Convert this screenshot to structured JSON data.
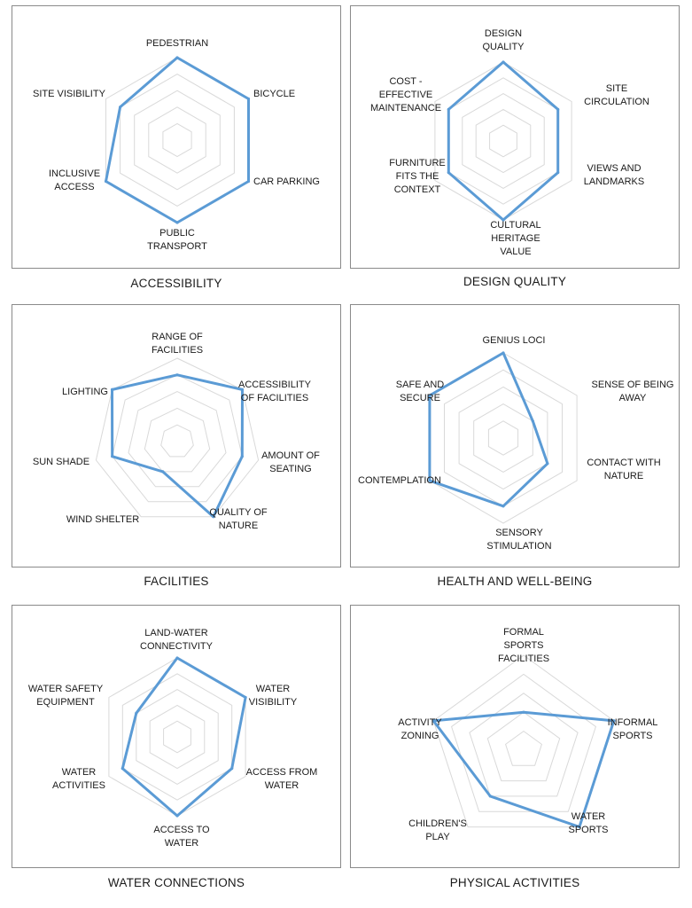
{
  "chart_data": [
    {
      "type": "radar",
      "title": "ACCESSIBILITY",
      "categories": [
        "PEDESTRIAN",
        "BICYCLE",
        "CAR PARKING",
        "PUBLIC TRANSPORT",
        "INCLUSIVE ACCESS",
        "SITE VISIBILITY"
      ],
      "values": [
        5,
        5,
        5,
        5,
        5,
        4
      ],
      "rmax": 5,
      "series_color": "#5b9bd5",
      "grid": true
    },
    {
      "type": "radar",
      "title": "DESIGN QUALITY",
      "categories": [
        "DESIGN QUALITY",
        "SITE CIRCULATION",
        "VIEWS AND LANDMARKS",
        "CULTURAL HERITAGE VALUE",
        "FURNITURE FITS THE CONTEXT",
        "COST - EFFECTIVE MAINTENANCE"
      ],
      "values": [
        5,
        4,
        4,
        5,
        4,
        4
      ],
      "rmax": 5,
      "series_color": "#5b9bd5",
      "grid": true
    },
    {
      "type": "radar",
      "title": "FACILITIES",
      "categories": [
        "RANGE OF FACILITIES",
        "ACCESSIBILITY OF FACILITIES",
        "AMOUNT OF SEATING",
        "QUALITY OF NATURE",
        "WIND SHELTER",
        "SUN SHADE",
        "LIGHTING"
      ],
      "values": [
        4,
        5,
        4,
        5,
        2,
        4,
        5
      ],
      "rmax": 5,
      "series_color": "#5b9bd5",
      "grid": true
    },
    {
      "type": "radar",
      "title": "HEALTH AND WELL-BEING",
      "categories": [
        "GENIUS LOCI",
        "SENSE OF BEING AWAY",
        "CONTACT WITH NATURE",
        "SENSORY STIMULATION",
        "CONTEMPLATION",
        "SAFE AND SECURE"
      ],
      "values": [
        5,
        2,
        3,
        4,
        5,
        5
      ],
      "rmax": 5,
      "series_color": "#5b9bd5",
      "grid": true
    },
    {
      "type": "radar",
      "title": "WATER CONNECTIONS",
      "categories": [
        "LAND-WATER CONNECTIVITY",
        "WATER VISIBILITY",
        "ACCESS FROM WATER",
        "ACCESS TO WATER",
        "WATER ACTIVITIES",
        "WATER SAFETY EQUIPMENT"
      ],
      "values": [
        5,
        5,
        4,
        5,
        4,
        3
      ],
      "rmax": 5,
      "series_color": "#5b9bd5",
      "grid": true
    },
    {
      "type": "radar",
      "title": "PHYSICAL ACTIVITIES",
      "categories": [
        "FORMAL SPORTS FACILITIES",
        "INFORMAL SPORTS",
        "WATER SPORTS",
        "CHILDREN'S PLAY",
        "ACTIVITY ZONING"
      ],
      "values": [
        2,
        5,
        5,
        3,
        5
      ],
      "rmax": 5,
      "series_color": "#5b9bd5",
      "grid": true
    }
  ]
}
